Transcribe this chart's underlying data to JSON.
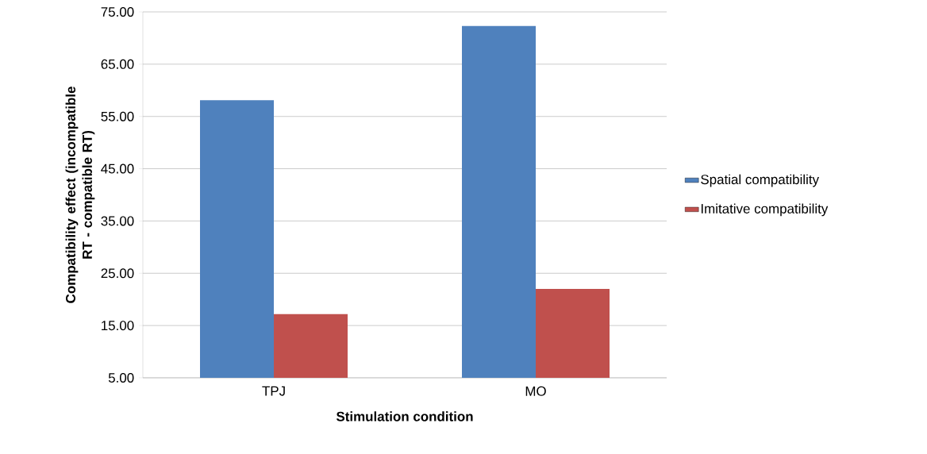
{
  "chart_data": {
    "type": "bar",
    "xlabel": "Stimulation condition",
    "ylabel": "Compatibility effect (incompatible RT - compatible RT)",
    "categories": [
      "TPJ",
      "MO"
    ],
    "series": [
      {
        "name": "Spatial compatibility",
        "color": "#4f81bd",
        "values": [
          58.1,
          72.3
        ]
      },
      {
        "name": "Imitative compatibility",
        "color": "#c0504d",
        "values": [
          17.2,
          22.0
        ]
      }
    ],
    "ylim": [
      5,
      75
    ],
    "yticks": [
      {
        "value": 5,
        "label": "5.00"
      },
      {
        "value": 15,
        "label": "15.00"
      },
      {
        "value": 25,
        "label": "25.00"
      },
      {
        "value": 35,
        "label": "35.00"
      },
      {
        "value": 45,
        "label": "45.00"
      },
      {
        "value": 55,
        "label": "55.00"
      },
      {
        "value": 65,
        "label": "65.00"
      },
      {
        "value": 75,
        "label": "75.00"
      }
    ],
    "grid": "y",
    "legend": "right"
  }
}
